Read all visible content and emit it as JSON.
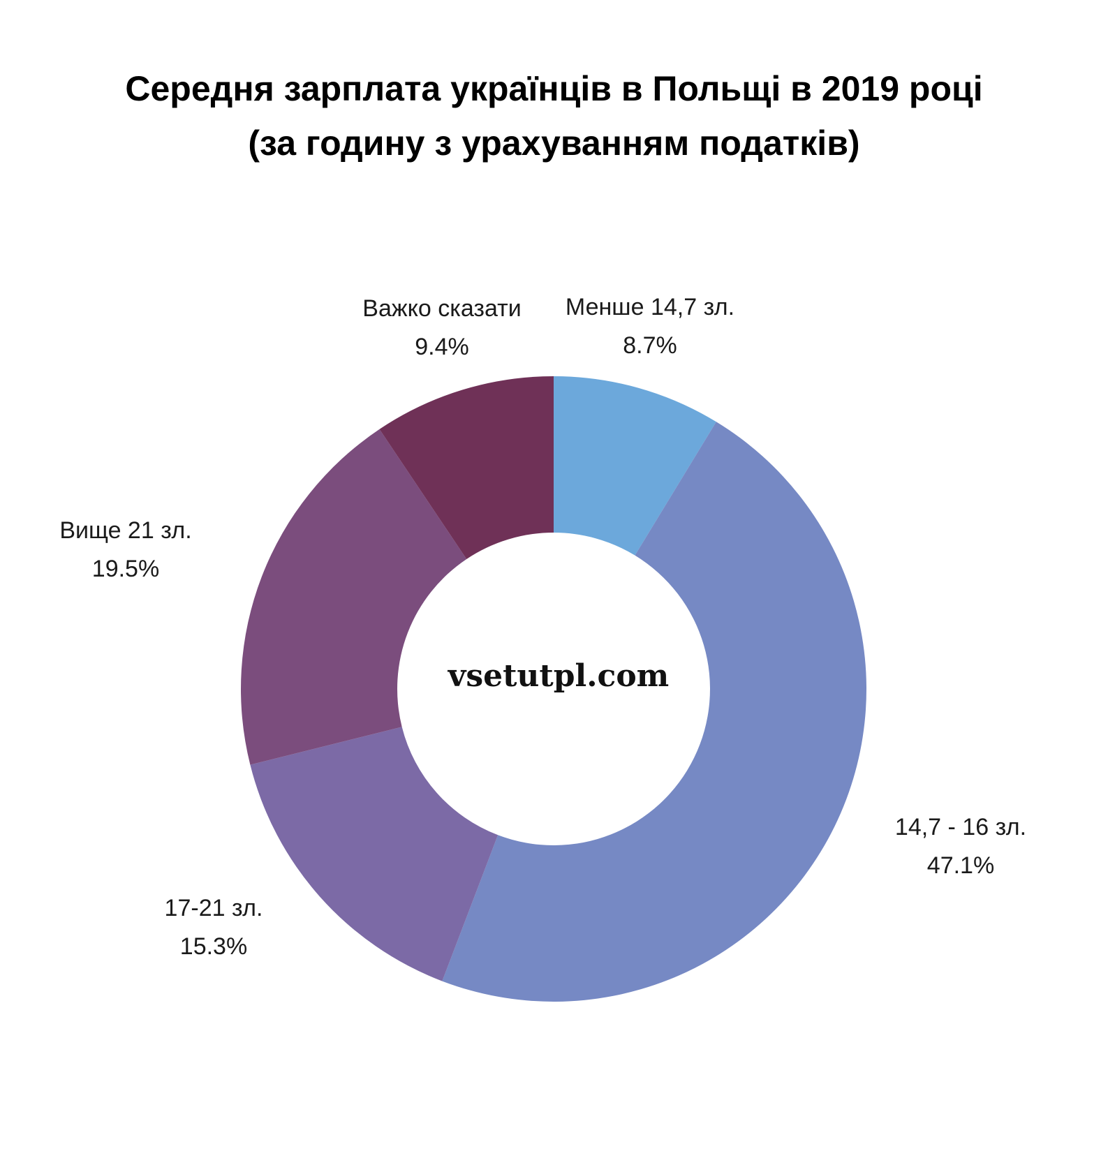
{
  "chart_data": {
    "type": "pie",
    "variant": "donut",
    "title_lines": [
      "Середня зарплата українців в Польщі в 2019 році",
      "(за годину з урахуванням податків)"
    ],
    "watermark": "vsetutpl.com",
    "slices": [
      {
        "label": "Менше 14,7 зл.",
        "value": 8.7,
        "display": "8.7%",
        "color": "#6ca8db"
      },
      {
        "label": "14,7 - 16 зл.",
        "value": 47.1,
        "display": "47.1%",
        "color": "#7689c4"
      },
      {
        "label": "17-21 зл.",
        "value": 15.3,
        "display": "15.3%",
        "color": "#7c6aa6"
      },
      {
        "label": "Вище 21 зл.",
        "value": 19.5,
        "display": "19.5%",
        "color": "#7b4d7d"
      },
      {
        "label": "Важко сказати",
        "value": 9.4,
        "display": "9.4%",
        "color": "#6f3157"
      }
    ]
  }
}
